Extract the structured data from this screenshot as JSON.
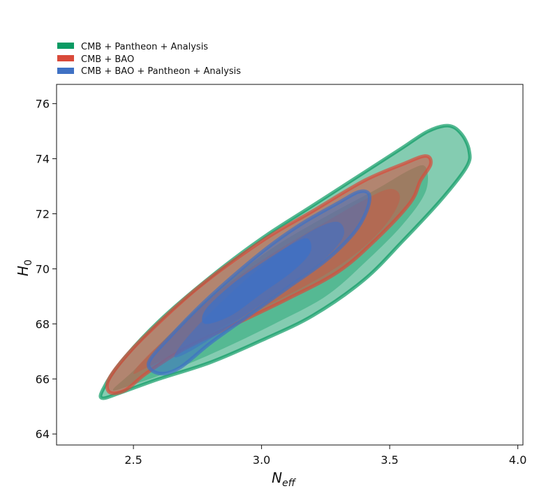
{
  "chart_data": {
    "type": "contour",
    "xlabel": "N",
    "xlabel_subscript": "eff",
    "ylabel": "H",
    "ylabel_subscript": "0",
    "xlim": [
      2.2,
      4.02
    ],
    "ylim": [
      63.6,
      76.7
    ],
    "xticks": [
      2.5,
      3.0,
      3.5,
      4.0
    ],
    "xtick_labels": [
      "2.5",
      "3.0",
      "3.5",
      "4.0"
    ],
    "yticks": [
      64,
      66,
      68,
      70,
      72,
      74,
      76
    ],
    "ytick_labels": [
      "64",
      "66",
      "68",
      "70",
      "72",
      "74",
      "76"
    ],
    "grid": false,
    "legend_position": "top-left, above plot",
    "series": [
      {
        "name": "CMB + Pantheon + Analysis",
        "color": "#0a9a63",
        "levels": [
          {
            "level": "outer",
            "opacity": 0.5,
            "points": [
              [
                2.38,
                65.3
              ],
              [
                2.38,
                65.6
              ],
              [
                2.45,
                66.6
              ],
              [
                2.6,
                68.1
              ],
              [
                2.8,
                69.7
              ],
              [
                3.0,
                71.1
              ],
              [
                3.2,
                72.3
              ],
              [
                3.4,
                73.5
              ],
              [
                3.55,
                74.4
              ],
              [
                3.65,
                75.0
              ],
              [
                3.73,
                75.2
              ],
              [
                3.78,
                74.9
              ],
              [
                3.81,
                74.3
              ],
              [
                3.8,
                73.7
              ],
              [
                3.7,
                72.5
              ],
              [
                3.55,
                71.0
              ],
              [
                3.4,
                69.6
              ],
              [
                3.2,
                68.3
              ],
              [
                3.0,
                67.4
              ],
              [
                2.8,
                66.6
              ],
              [
                2.6,
                66.0
              ],
              [
                2.45,
                65.5
              ]
            ]
          },
          {
            "level": "inner",
            "opacity": 0.38,
            "points": [
              [
                2.42,
                65.6
              ],
              [
                2.5,
                66.3
              ],
              [
                2.65,
                67.7
              ],
              [
                2.85,
                69.4
              ],
              [
                3.05,
                70.8
              ],
              [
                3.25,
                71.9
              ],
              [
                3.45,
                72.9
              ],
              [
                3.58,
                73.6
              ],
              [
                3.64,
                73.7
              ],
              [
                3.64,
                72.8
              ],
              [
                3.55,
                71.6
              ],
              [
                3.4,
                70.2
              ],
              [
                3.25,
                69.0
              ],
              [
                3.05,
                68.0
              ],
              [
                2.85,
                67.1
              ],
              [
                2.65,
                66.3
              ],
              [
                2.5,
                65.8
              ]
            ]
          }
        ]
      },
      {
        "name": "CMB + BAO",
        "color": "#d94a3a",
        "levels": [
          {
            "level": "outer",
            "opacity": 0.55,
            "points": [
              [
                2.41,
                65.5
              ],
              [
                2.4,
                65.9
              ],
              [
                2.45,
                66.6
              ],
              [
                2.55,
                67.6
              ],
              [
                2.75,
                69.3
              ],
              [
                3.0,
                71.0
              ],
              [
                3.2,
                72.1
              ],
              [
                3.4,
                73.2
              ],
              [
                3.55,
                73.8
              ],
              [
                3.64,
                74.1
              ],
              [
                3.66,
                73.8
              ],
              [
                3.62,
                73.2
              ],
              [
                3.58,
                72.4
              ],
              [
                3.45,
                71.1
              ],
              [
                3.3,
                69.9
              ],
              [
                3.1,
                68.9
              ],
              [
                2.9,
                68.0
              ],
              [
                2.7,
                67.1
              ],
              [
                2.55,
                66.2
              ],
              [
                2.47,
                65.6
              ]
            ]
          },
          {
            "level": "inner",
            "opacity": 0.35,
            "points": [
              [
                2.5,
                66.2
              ],
              [
                2.55,
                66.8
              ],
              [
                2.68,
                67.9
              ],
              [
                2.85,
                69.3
              ],
              [
                3.05,
                70.6
              ],
              [
                3.25,
                71.7
              ],
              [
                3.4,
                72.5
              ],
              [
                3.5,
                72.9
              ],
              [
                3.54,
                72.6
              ],
              [
                3.5,
                71.8
              ],
              [
                3.4,
                70.8
              ],
              [
                3.25,
                69.8
              ],
              [
                3.05,
                68.8
              ],
              [
                2.85,
                67.9
              ],
              [
                2.68,
                67.0
              ],
              [
                2.55,
                66.4
              ]
            ]
          }
        ]
      },
      {
        "name": "CMB + BAO + Pantheon + Analysis",
        "color": "#3f71c4",
        "levels": [
          {
            "level": "outer",
            "opacity": 0.55,
            "points": [
              [
                2.6,
                66.2
              ],
              [
                2.56,
                66.6
              ],
              [
                2.65,
                67.6
              ],
              [
                2.8,
                69.0
              ],
              [
                3.0,
                70.6
              ],
              [
                3.15,
                71.6
              ],
              [
                3.3,
                72.4
              ],
              [
                3.38,
                72.8
              ],
              [
                3.42,
                72.7
              ],
              [
                3.41,
                72.1
              ],
              [
                3.36,
                71.3
              ],
              [
                3.25,
                70.3
              ],
              [
                3.1,
                69.3
              ],
              [
                2.95,
                68.3
              ],
              [
                2.8,
                67.3
              ],
              [
                2.68,
                66.4
              ]
            ]
          },
          {
            "level": "mid",
            "opacity": 0.55,
            "points": [
              [
                2.66,
                66.8
              ],
              [
                2.7,
                67.4
              ],
              [
                2.8,
                68.4
              ],
              [
                2.95,
                69.7
              ],
              [
                3.1,
                70.8
              ],
              [
                3.22,
                71.5
              ],
              [
                3.3,
                71.7
              ],
              [
                3.32,
                71.2
              ],
              [
                3.25,
                70.4
              ],
              [
                3.12,
                69.5
              ],
              [
                2.98,
                68.6
              ],
              [
                2.84,
                67.7
              ],
              [
                2.72,
                67.0
              ]
            ]
          },
          {
            "level": "core",
            "opacity": 0.8,
            "points": [
              [
                2.78,
                68.0
              ],
              [
                2.78,
                68.5
              ],
              [
                2.88,
                69.4
              ],
              [
                3.0,
                70.2
              ],
              [
                3.12,
                70.9
              ],
              [
                3.18,
                71.1
              ],
              [
                3.19,
                70.6
              ],
              [
                3.12,
                69.9
              ],
              [
                3.0,
                69.1
              ],
              [
                2.88,
                68.3
              ]
            ]
          }
        ]
      }
    ]
  }
}
